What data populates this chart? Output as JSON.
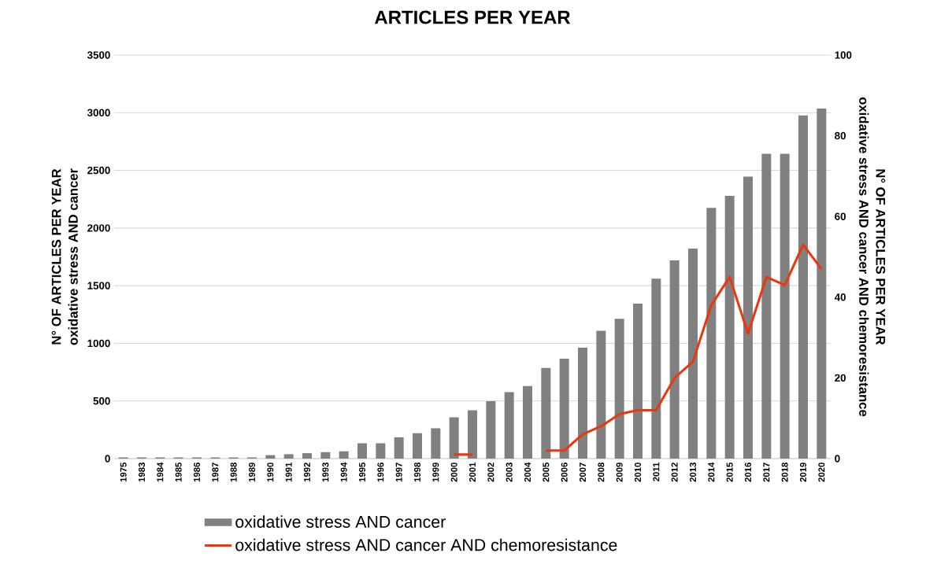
{
  "chart_data": {
    "type": "bar",
    "title": "ARTICLES PER YEAR",
    "ylabel": "N° OF ARTICLES PER YEAR oxidative stress AND cancer",
    "y2label": "N° OF ARTICLES PER YEAR oxidative stress AND cancer AND chemoresistance",
    "categories": [
      "1975",
      "1983",
      "1984",
      "1985",
      "1986",
      "1987",
      "1988",
      "1989",
      "1990",
      "1991",
      "1992",
      "1993",
      "1994",
      "1995",
      "1996",
      "1997",
      "1998",
      "1999",
      "2000",
      "2001",
      "2002",
      "2003",
      "2004",
      "2005",
      "2006",
      "2007",
      "2008",
      "2009",
      "2010",
      "2011",
      "2012",
      "2013",
      "2014",
      "2015",
      "2016",
      "2017",
      "2018",
      "2019",
      "2020"
    ],
    "series": [
      {
        "name": "oxidative stress AND cancer",
        "type": "bar",
        "color": "#808080",
        "values": [
          10,
          10,
          10,
          10,
          10,
          10,
          10,
          10,
          30,
          38,
          47,
          56,
          63,
          133,
          133,
          185,
          220,
          263,
          358,
          419,
          498,
          577,
          629,
          787,
          866,
          962,
          1109,
          1213,
          1344,
          1561,
          1719,
          1821,
          2174,
          2278,
          2446,
          2644,
          2644,
          2977,
          3036
        ]
      },
      {
        "name": "oxidative stress AND cancer AND chemoresistance",
        "type": "line",
        "axis": "y2",
        "color": "#e8380d",
        "values": [
          null,
          null,
          null,
          null,
          null,
          null,
          null,
          null,
          null,
          null,
          null,
          null,
          null,
          null,
          null,
          null,
          null,
          null,
          1,
          1,
          null,
          null,
          null,
          2,
          2,
          6,
          8,
          11,
          12,
          12,
          20,
          24,
          38,
          45,
          31,
          45,
          43,
          53,
          47
        ]
      }
    ],
    "ylim": [
      0,
      3500
    ],
    "yticks": [
      0,
      500,
      1000,
      1500,
      2000,
      2500,
      3000,
      3500
    ],
    "y2lim": [
      0,
      100
    ],
    "y2ticks": [
      0,
      20,
      40,
      60,
      80,
      100
    ],
    "grid": "y",
    "legend": "bottom"
  }
}
